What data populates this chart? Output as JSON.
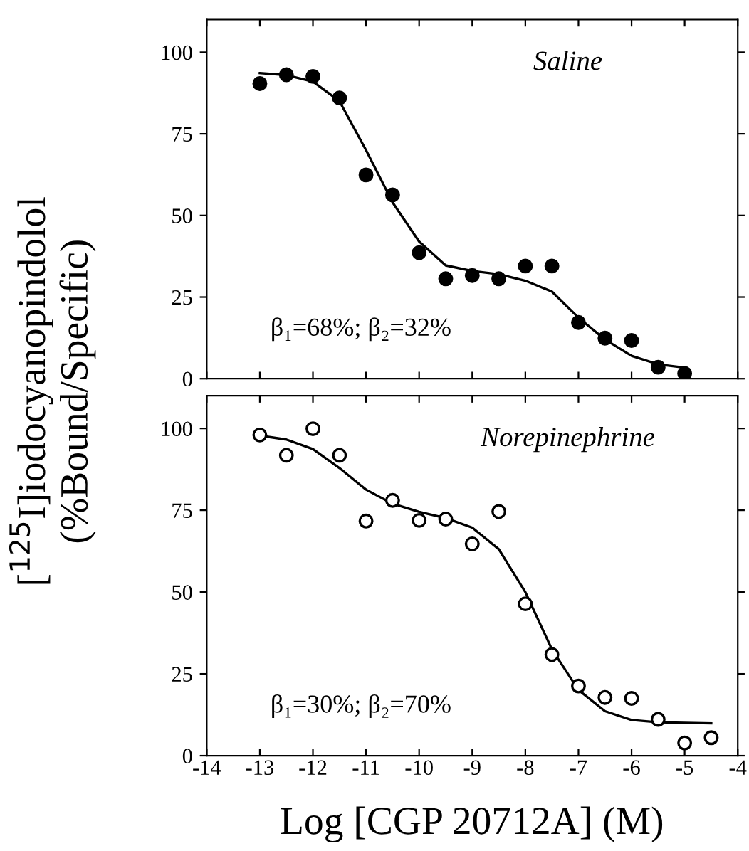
{
  "chart_data": [
    {
      "type": "scatter",
      "ylabel": "[$^{125}$I]iodocyanopindolol\n(%Bound/Specific)",
      "annotations": [
        "Saline",
        "β₁=68%; β₂=32%"
      ],
      "xlim": [
        -14,
        -4
      ],
      "xticks": [
        -14,
        -13,
        -12,
        -11,
        -10,
        -9,
        -8,
        -7,
        -6,
        -5,
        -4
      ],
      "ylim": [
        0,
        110
      ],
      "yticks": [
        0,
        25,
        50,
        75,
        100
      ],
      "tick_labels": "y",
      "grid": false,
      "legend": false,
      "series": [
        {
          "marker": "circle",
          "color": "#000000",
          "x": [
            -13,
            -12.5,
            -12,
            -11.5,
            -11,
            -10.5,
            -10,
            -9.5,
            -9,
            -8.5,
            -8,
            -7.5,
            -7,
            -6.5,
            -6,
            -5.5,
            -5
          ],
          "values": [
            90.4,
            93.1,
            92.6,
            86,
            62.4,
            56.3,
            38.6,
            30.6,
            31.6,
            30.6,
            34.5,
            34.5,
            17.2,
            12.4,
            11.7,
            3.5,
            1.6
          ]
        },
        {
          "type": "line",
          "marker": "none",
          "line_style": "solid",
          "color": "#000000",
          "x": [
            -13,
            -12.5,
            -12,
            -11.5,
            -11,
            -10.5,
            -10,
            -9.5,
            -9,
            -8.5,
            -8,
            -7.5,
            -7,
            -6.5,
            -6,
            -5.5,
            -5
          ],
          "values": [
            93.6,
            93,
            91,
            85,
            70,
            54,
            42,
            34.7,
            33,
            32,
            30,
            26.7,
            18.7,
            12,
            7,
            4.4,
            3.4
          ]
        }
      ]
    },
    {
      "type": "scatter",
      "xlabel": "Log [CGP 20712A] (M)",
      "annotations": [
        "Norepinephrine",
        "β₁=30%; β₂=70%"
      ],
      "xlim": [
        -14,
        -4
      ],
      "xticks": [
        -14,
        -13,
        -12,
        -11,
        -10,
        -9,
        -8,
        -7,
        -6,
        -5,
        -4
      ],
      "ylim": [
        0,
        110
      ],
      "yticks": [
        0,
        25,
        50,
        75,
        100
      ],
      "grid": false,
      "legend": false,
      "series": [
        {
          "marker": "circle",
          "color": "#ffffff",
          "x": [
            -13,
            -12.5,
            -12,
            -11.5,
            -11,
            -10.5,
            -10,
            -9.5,
            -9,
            -8.5,
            -8,
            -7.5,
            -7,
            -6.5,
            -6,
            -5.5,
            -5,
            -4.5
          ],
          "values": [
            98,
            91.8,
            99.9,
            91.8,
            71.7,
            78,
            71.9,
            72.3,
            64.7,
            74.6,
            46.4,
            30.9,
            21.3,
            17.8,
            17.5,
            11.1,
            3.9,
            5.5
          ]
        },
        {
          "type": "line",
          "marker": "none",
          "line_style": "solid",
          "color": "#000000",
          "x": [
            -13,
            -12.5,
            -12,
            -11.5,
            -11,
            -10.5,
            -10,
            -9.5,
            -9,
            -8.5,
            -8,
            -7.5,
            -7,
            -6.5,
            -6,
            -5.5,
            -4.5
          ],
          "values": [
            97.8,
            96.6,
            93.7,
            87.9,
            81.3,
            77,
            74.5,
            72.6,
            69.7,
            63.1,
            50,
            32.5,
            20.1,
            13.6,
            10.9,
            10.2,
            9.9
          ]
        }
      ]
    }
  ]
}
